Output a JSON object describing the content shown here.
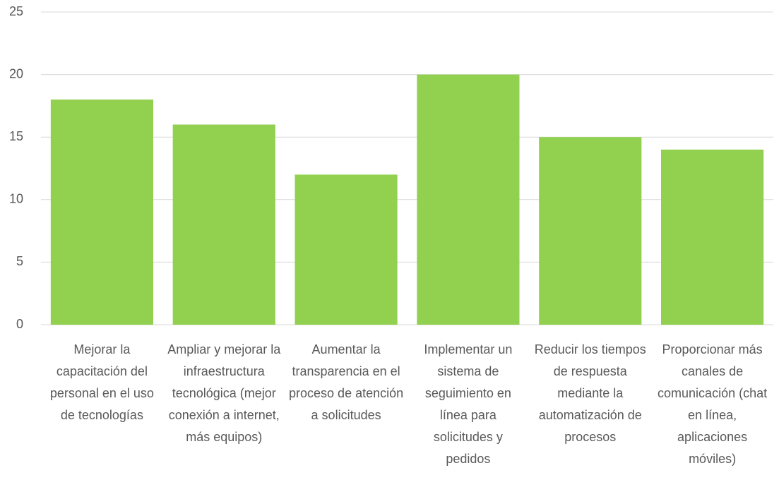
{
  "chart_data": {
    "type": "bar",
    "categories": [
      "Mejorar la capacitación del personal en el uso de tecnologías",
      "Ampliar y mejorar la infraestructura tecnológica (mejor conexión a internet, más equipos)",
      "Aumentar la transparencia en el proceso de atención a solicitudes",
      "Implementar un sistema de seguimiento en línea para solicitudes y pedidos",
      "Reducir los tiempos de respuesta mediante la automatización de procesos",
      "Proporcionar más canales de comunicación (chat en línea, aplicaciones móviles)"
    ],
    "values": [
      18,
      16,
      12,
      20,
      15,
      14
    ],
    "color": "#92d050",
    "ylim": [
      0,
      25
    ],
    "yticks": [
      0,
      5,
      10,
      15,
      20,
      25
    ],
    "grid": true
  }
}
